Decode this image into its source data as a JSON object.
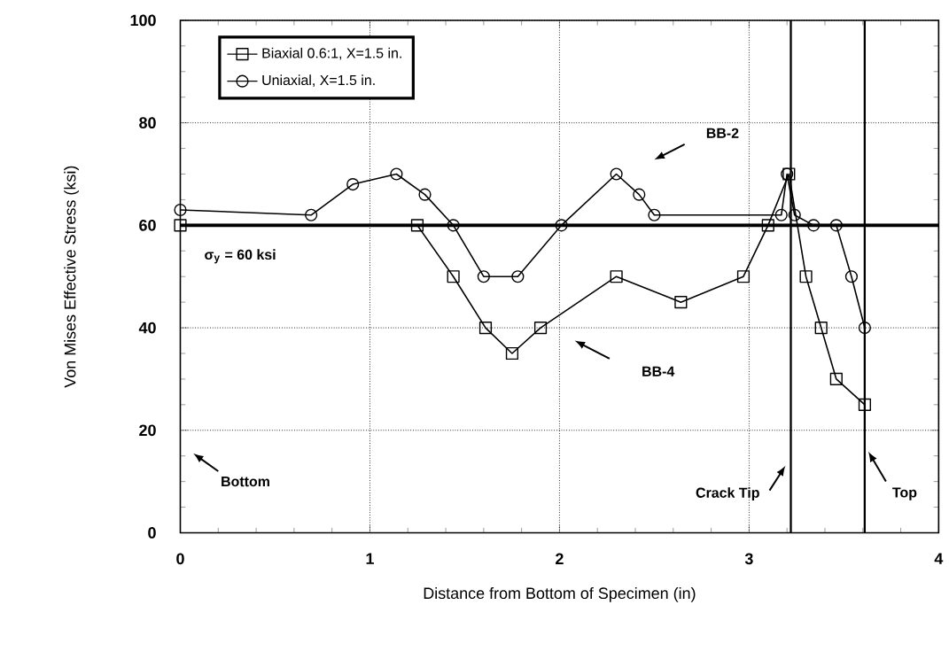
{
  "chart_data": {
    "type": "line",
    "xlabel": "Distance from Bottom of Specimen (in)",
    "ylabel": "Von Mises Effective Stress (ksi)",
    "xlim": [
      0,
      4
    ],
    "xticks": [
      0,
      1,
      2,
      3,
      4
    ],
    "ylim": [
      0,
      100
    ],
    "yticks": [
      0,
      20,
      40,
      60,
      80,
      100
    ],
    "grid": true,
    "legend": "top left",
    "line_style": "solid",
    "series": [
      {
        "name": "Biaxial 0.6:1, X=1.5 in.",
        "color": "#000000",
        "marker": "square",
        "x": [
          0,
          1.25,
          1.44,
          1.61,
          1.75,
          1.9,
          2.3,
          2.64,
          2.97,
          3.1,
          3.21,
          3.3,
          3.38,
          3.46,
          3.61
        ],
        "values": [
          60,
          60,
          50,
          40,
          35,
          40,
          50,
          45,
          50,
          60,
          70,
          50,
          40,
          30,
          25
        ]
      },
      {
        "name": "Uniaxial, X=1.5 in.",
        "color": "#000000",
        "marker": "circle",
        "x": [
          0,
          0.69,
          0.91,
          1.14,
          1.29,
          1.44,
          1.6,
          1.78,
          2.01,
          2.3,
          2.42,
          2.5,
          3.17,
          3.2,
          3.24,
          3.34,
          3.46,
          3.54,
          3.61
        ],
        "values": [
          63,
          62,
          68,
          70,
          66,
          60,
          50,
          50,
          60,
          70,
          66,
          62,
          62,
          70,
          62,
          60,
          60,
          50,
          40
        ]
      }
    ],
    "ref_lines": [
      {
        "axis": "y",
        "value": 60,
        "label": "σ$_{y}$ = 60 ksi",
        "color": "#000000"
      },
      {
        "axis": "x",
        "value": 3.22,
        "label": "Crack Tip",
        "color": "#000000"
      },
      {
        "axis": "x",
        "value": 3.61,
        "label": "Top",
        "color": "#000000"
      }
    ],
    "annotations": [
      "BB-2",
      "BB-4",
      "Bottom"
    ]
  }
}
